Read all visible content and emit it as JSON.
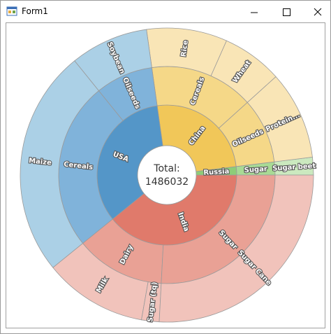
{
  "window": {
    "title": "Form1"
  },
  "chart_data": {
    "type": "sunburst",
    "center_label": "Total:",
    "total": 1486032,
    "nodes": [
      {
        "name": "Russia",
        "colors": [
          "#8dcd78",
          "#a8da95",
          "#cbe9bf"
        ],
        "children": [
          {
            "name": "Sugar",
            "children": [
              {
                "name": "Sugar beet",
                "value": 28900
              }
            ]
          }
        ]
      },
      {
        "name": "China",
        "colors": [
          "#f1c759",
          "#f5d888",
          "#f9e5b6"
        ],
        "children": [
          {
            "name": "Oilseeds",
            "children": [
              {
                "name": "Protein...",
                "value": 144500
              }
            ]
          },
          {
            "name": "Cereals",
            "children": [
              {
                "name": "Wheat",
                "value": 99100
              },
              {
                "name": "Rice",
                "value": 132100
              }
            ]
          }
        ]
      },
      {
        "name": "USA",
        "colors": [
          "#5496c8",
          "#80b3da",
          "#abd0e6"
        ],
        "children": [
          {
            "name": "Oilseeds",
            "children": [
              {
                "name": "Soybean",
                "value": 128000
              }
            ]
          },
          {
            "name": "Cereals",
            "children": [
              {
                "name": "Maize",
                "value": 371432
              }
            ]
          }
        ]
      },
      {
        "name": "India",
        "colors": [
          "#e07a6b",
          "#e9a195",
          "#f1c3bb"
        ],
        "children": [
          {
            "name": "Dairy",
            "children": [
              {
                "name": "Milk",
                "value": 169200
              },
              {
                "name": "Sugar (tq)",
                "value": 28900
              }
            ]
          },
          {
            "name": "Sugar",
            "children": [
              {
                "name": "Sugar Cane",
                "value": 383900
              }
            ]
          }
        ]
      }
    ]
  }
}
